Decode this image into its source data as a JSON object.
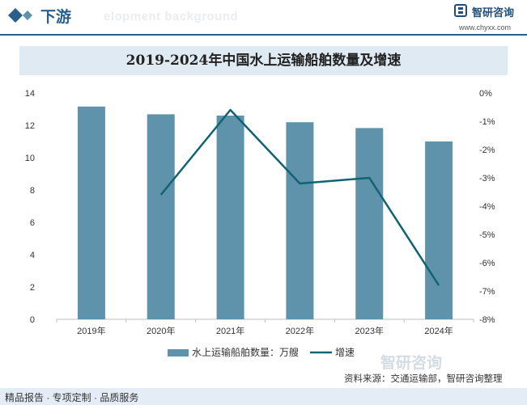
{
  "header": {
    "section_title": "下游",
    "watermark": "elopment background",
    "logo_text": "智研咨询",
    "site_url": "www.chyxx.com"
  },
  "chart_data": {
    "type": "bar",
    "title": "2019-2024年中国水上运输船舶数量及增速",
    "categories": [
      "2019年",
      "2020年",
      "2021年",
      "2022年",
      "2023年",
      "2024年"
    ],
    "series": [
      {
        "name": "水上运输船舶数量：万艘",
        "type": "bar",
        "axis": "left",
        "color": "#5e93ab",
        "values": [
          13.16,
          12.68,
          12.6,
          12.19,
          11.83,
          11.0
        ]
      },
      {
        "name": "增速",
        "type": "line",
        "axis": "right",
        "color": "#0f6375",
        "values": [
          null,
          -3.6,
          -0.6,
          -3.2,
          -3.0,
          -6.8
        ]
      }
    ],
    "y_left": {
      "min": 0,
      "max": 14,
      "ticks": [
        0,
        2,
        4,
        6,
        8,
        10,
        12,
        14
      ]
    },
    "y_right": {
      "min": -8,
      "max": 0,
      "ticks": [
        "0%",
        "-1%",
        "-2%",
        "-3%",
        "-4%",
        "-5%",
        "-6%",
        "-7%",
        "-8%"
      ]
    },
    "legend_position": "bottom",
    "grid": false
  },
  "footer": {
    "services": "精品报告 · 专项定制 · 品质服务",
    "source": "资料来源：交通运输部，智研咨询整理",
    "watermark_logo": "智研咨询"
  }
}
